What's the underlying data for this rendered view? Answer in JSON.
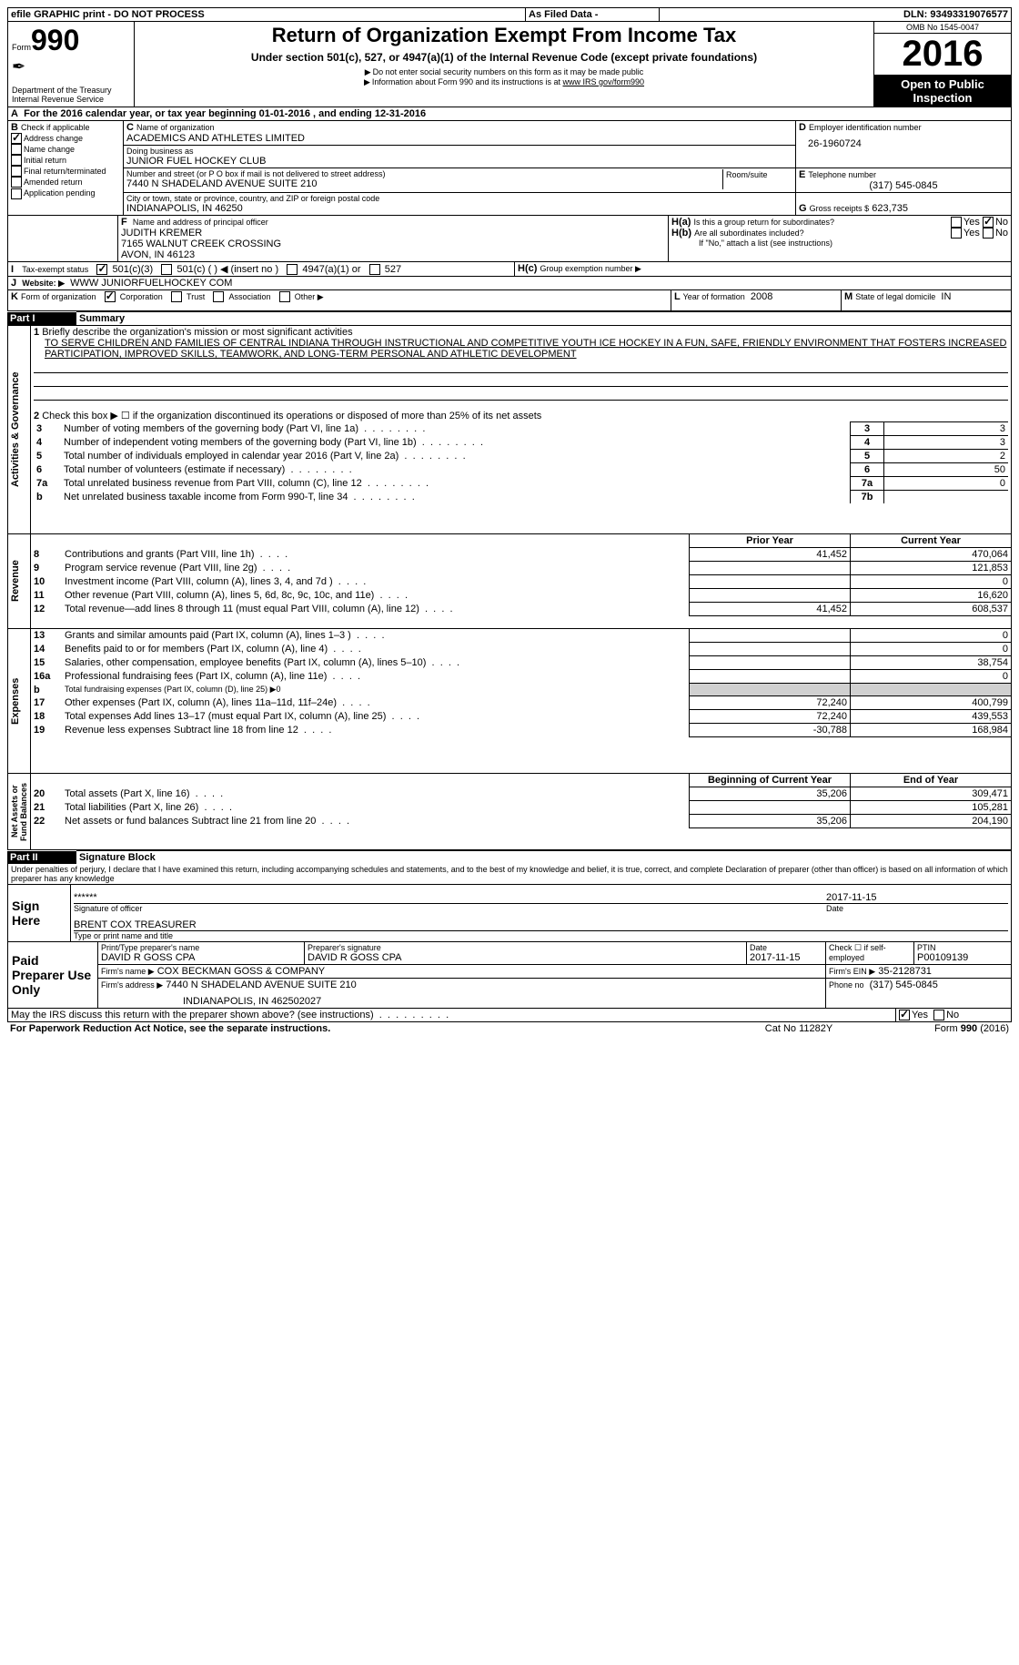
{
  "header": {
    "efile_line": "efile GRAPHIC print - DO NOT PROCESS",
    "as_filed": "As Filed Data -",
    "dln_label": "DLN:",
    "dln": "93493319076577",
    "form_label": "Form",
    "form_no": "990",
    "dept1": "Department of the Treasury",
    "dept2": "Internal Revenue Service",
    "title": "Return of Organization Exempt From Income Tax",
    "subtitle": "Under section 501(c), 527, or 4947(a)(1) of the Internal Revenue Code (except private foundations)",
    "note1": "Do not enter social security numbers on this form as it may be made public",
    "note2": "Information about Form 990 and its instructions is at ",
    "note2_link": "www IRS gov/form990",
    "omb": "OMB No 1545-0047",
    "year": "2016",
    "open": "Open to Public Inspection"
  },
  "A": {
    "line": "For the 2016 calendar year, or tax year beginning 01-01-2016   , and ending 12-31-2016"
  },
  "B": {
    "label": "Check if applicable",
    "addr_change": "Address change",
    "name_change": "Name change",
    "initial": "Initial return",
    "final": "Final return/terminated",
    "amended": "Amended return",
    "app_pending": "Application pending"
  },
  "C": {
    "name_label": "Name of organization",
    "name": "ACADEMICS AND ATHLETES LIMITED",
    "dba_label": "Doing business as",
    "dba": "JUNIOR FUEL HOCKEY CLUB",
    "addr_label": "Number and street (or P O  box if mail is not delivered to street address)",
    "room_label": "Room/suite",
    "addr": "7440 N SHADELAND AVENUE SUITE 210",
    "city_label": "City or town, state or province, country, and ZIP or foreign postal code",
    "city": "INDIANAPOLIS, IN  46250"
  },
  "D": {
    "label": "Employer identification number",
    "value": "26-1960724"
  },
  "E": {
    "label": "Telephone number",
    "value": "(317) 545-0845"
  },
  "G": {
    "label": "Gross receipts $",
    "value": "623,735"
  },
  "F": {
    "label": "Name and address of principal officer",
    "name": "JUDITH KREMER",
    "addr1": "7165 WALNUT CREEK CROSSING",
    "addr2": "AVON, IN  46123"
  },
  "H": {
    "a": "Is this a group return for subordinates?",
    "b": "Are all subordinates included?",
    "b_note": "If \"No,\" attach a list  (see instructions)",
    "c": "Group exemption number ▶",
    "yes": "Yes",
    "no": "No"
  },
  "I": {
    "label": "Tax-exempt status",
    "c3": "501(c)(3)",
    "c": "501(c) (   ) ◀ (insert no )",
    "a1": "4947(a)(1) or",
    "s527": "527"
  },
  "J": {
    "label": "Website: ▶",
    "value": "WWW JUNIORFUELHOCKEY COM"
  },
  "K": {
    "label": "Form of organization",
    "corp": "Corporation",
    "trust": "Trust",
    "assoc": "Association",
    "other": "Other ▶"
  },
  "L": {
    "label": "Year of formation",
    "value": "2008"
  },
  "M": {
    "label": "State of legal domicile",
    "value": "IN"
  },
  "partI": {
    "title": "Part I",
    "subtitle": "Summary",
    "q1_label": "Briefly describe the organization's mission or most significant activities",
    "q1_text": "TO SERVE CHILDREN AND FAMILIES OF CENTRAL INDIANA THROUGH INSTRUCTIONAL AND COMPETITIVE YOUTH ICE HOCKEY IN A FUN, SAFE, FRIENDLY ENVIRONMENT THAT FOSTERS INCREASED PARTICIPATION, IMPROVED SKILLS, TEAMWORK, AND LONG-TERM PERSONAL AND ATHLETIC DEVELOPMENT",
    "q2": "Check this box ▶ ☐ if the organization discontinued its operations or disposed of more than 25% of its net assets",
    "rows_ag": [
      {
        "n": "3",
        "t": "Number of voting members of the governing body (Part VI, line 1a)",
        "c": "3",
        "v": "3"
      },
      {
        "n": "4",
        "t": "Number of independent voting members of the governing body (Part VI, line 1b)",
        "c": "4",
        "v": "3"
      },
      {
        "n": "5",
        "t": "Total number of individuals employed in calendar year 2016 (Part V, line 2a)",
        "c": "5",
        "v": "2"
      },
      {
        "n": "6",
        "t": "Total number of volunteers (estimate if necessary)",
        "c": "6",
        "v": "50"
      },
      {
        "n": "7a",
        "t": "Total unrelated business revenue from Part VIII, column (C), line 12",
        "c": "7a",
        "v": "0"
      },
      {
        "n": "b",
        "t": "Net unrelated business taxable income from Form 990-T, line 34",
        "c": "7b",
        "v": ""
      }
    ],
    "prior": "Prior Year",
    "current": "Current Year",
    "rows_rev": [
      {
        "n": "8",
        "t": "Contributions and grants (Part VIII, line 1h)",
        "p": "41,452",
        "c": "470,064"
      },
      {
        "n": "9",
        "t": "Program service revenue (Part VIII, line 2g)",
        "p": "",
        "c": "121,853"
      },
      {
        "n": "10",
        "t": "Investment income (Part VIII, column (A), lines 3, 4, and 7d )",
        "p": "",
        "c": "0"
      },
      {
        "n": "11",
        "t": "Other revenue (Part VIII, column (A), lines 5, 6d, 8c, 9c, 10c, and 11e)",
        "p": "",
        "c": "16,620"
      },
      {
        "n": "12",
        "t": "Total revenue—add lines 8 through 11 (must equal Part VIII, column (A), line 12)",
        "p": "41,452",
        "c": "608,537"
      }
    ],
    "rows_exp": [
      {
        "n": "13",
        "t": "Grants and similar amounts paid (Part IX, column (A), lines 1–3 )",
        "p": "",
        "c": "0"
      },
      {
        "n": "14",
        "t": "Benefits paid to or for members (Part IX, column (A), line 4)",
        "p": "",
        "c": "0"
      },
      {
        "n": "15",
        "t": "Salaries, other compensation, employee benefits (Part IX, column (A), lines 5–10)",
        "p": "",
        "c": "38,754"
      },
      {
        "n": "16a",
        "t": "Professional fundraising fees (Part IX, column (A), line 11e)",
        "p": "",
        "c": "0"
      },
      {
        "n": "b",
        "t": "Total fundraising expenses (Part IX, column (D), line 25) ▶0",
        "p": null,
        "c": null
      },
      {
        "n": "17",
        "t": "Other expenses (Part IX, column (A), lines 11a–11d, 11f–24e)",
        "p": "72,240",
        "c": "400,799"
      },
      {
        "n": "18",
        "t": "Total expenses  Add lines 13–17 (must equal Part IX, column (A), line 25)",
        "p": "72,240",
        "c": "439,553"
      },
      {
        "n": "19",
        "t": "Revenue less expenses  Subtract line 18 from line 12",
        "p": "-30,788",
        "c": "168,984"
      }
    ],
    "beg": "Beginning of Current Year",
    "end": "End of Year",
    "rows_na": [
      {
        "n": "20",
        "t": "Total assets (Part X, line 16)",
        "p": "35,206",
        "c": "309,471"
      },
      {
        "n": "21",
        "t": "Total liabilities (Part X, line 26)",
        "p": "",
        "c": "105,281"
      },
      {
        "n": "22",
        "t": "Net assets or fund balances  Subtract line 21 from line 20",
        "p": "35,206",
        "c": "204,190"
      }
    ],
    "side_ag": "Activities & Governance",
    "side_rev": "Revenue",
    "side_exp": "Expenses",
    "side_na": "Net Assets or Fund Balances"
  },
  "partII": {
    "title": "Part II",
    "subtitle": "Signature Block",
    "perjury": "Under penalties of perjury, I declare that I have examined this return, including accompanying schedules and statements, and to the best of my knowledge and belief, it is true, correct, and complete  Declaration of preparer (other than officer) is based on all information of which preparer has any knowledge",
    "sign_here": "Sign Here",
    "sig_stars": "******",
    "sig_label": "Signature of officer",
    "sig_date": "2017-11-15",
    "date_label": "Date",
    "officer": "BRENT COX TREASURER",
    "officer_label": "Type or print name and title",
    "paid": "Paid Preparer Use Only",
    "prep_name_label": "Print/Type preparer's name",
    "prep_name": "DAVID R GOSS CPA",
    "prep_sig_label": "Preparer's signature",
    "prep_sig": "DAVID R GOSS CPA",
    "prep_date": "2017-11-15",
    "self_emp": "Check ☐ if self-employed",
    "ptin_label": "PTIN",
    "ptin": "P00109139",
    "firm_name_label": "Firm's name    ▶",
    "firm_name": "COX BECKMAN GOSS & COMPANY",
    "firm_ein_label": "Firm's EIN ▶",
    "firm_ein": "35-2128731",
    "firm_addr_label": "Firm's address ▶",
    "firm_addr1": "7440 N SHADELAND AVENUE SUITE 210",
    "firm_addr2": "INDIANAPOLIS, IN  462502027",
    "phone_label": "Phone no",
    "phone": "(317) 545-0845",
    "discuss": "May the IRS discuss this return with the preparer shown above? (see instructions)",
    "yes": "Yes",
    "no": "No"
  },
  "footer": {
    "paperwork": "For Paperwork Reduction Act Notice, see the separate instructions.",
    "cat": "Cat No  11282Y",
    "form": "Form 990 (2016)"
  }
}
